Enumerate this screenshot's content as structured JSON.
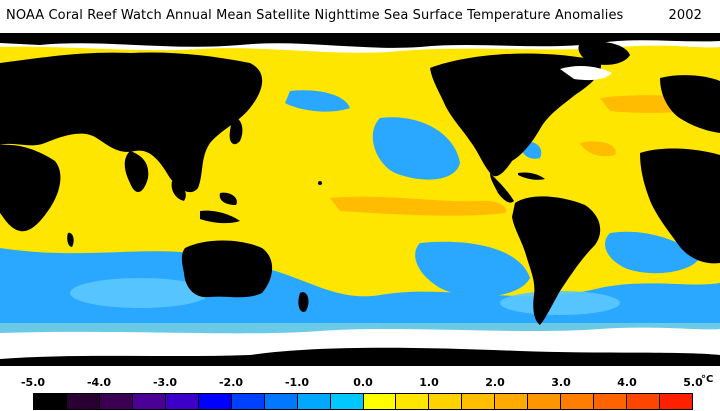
{
  "header": {
    "title": "NOAA Coral Reef Watch Annual Mean Satellite Nighttime Sea Surface Temperature Anomalies",
    "year": "2002"
  },
  "legend": {
    "unit": "°C",
    "tick_labels": [
      "-5.0",
      "-4.0",
      "-3.0",
      "-2.0",
      "-1.0",
      "0.0",
      "1.0",
      "2.0",
      "3.0",
      "4.0",
      "5.0"
    ],
    "colors": [
      "#000000",
      "#2a0033",
      "#3c0052",
      "#4b0096",
      "#3c00c8",
      "#0000ff",
      "#0040ff",
      "#0078ff",
      "#00a8ff",
      "#00c8ff",
      "#ffff00",
      "#ffe600",
      "#ffd200",
      "#ffbe00",
      "#ffaa00",
      "#ff9600",
      "#ff7d00",
      "#ff6400",
      "#ff4600",
      "#ff2000"
    ]
  },
  "map": {
    "land_color": "#000000",
    "ice_color": "#ffffff",
    "base_anomaly_color": "#ffe600",
    "cool_color": "#2aa8ff",
    "cool_light_color": "#5ac8ff",
    "warm_color": "#ffb400"
  }
}
